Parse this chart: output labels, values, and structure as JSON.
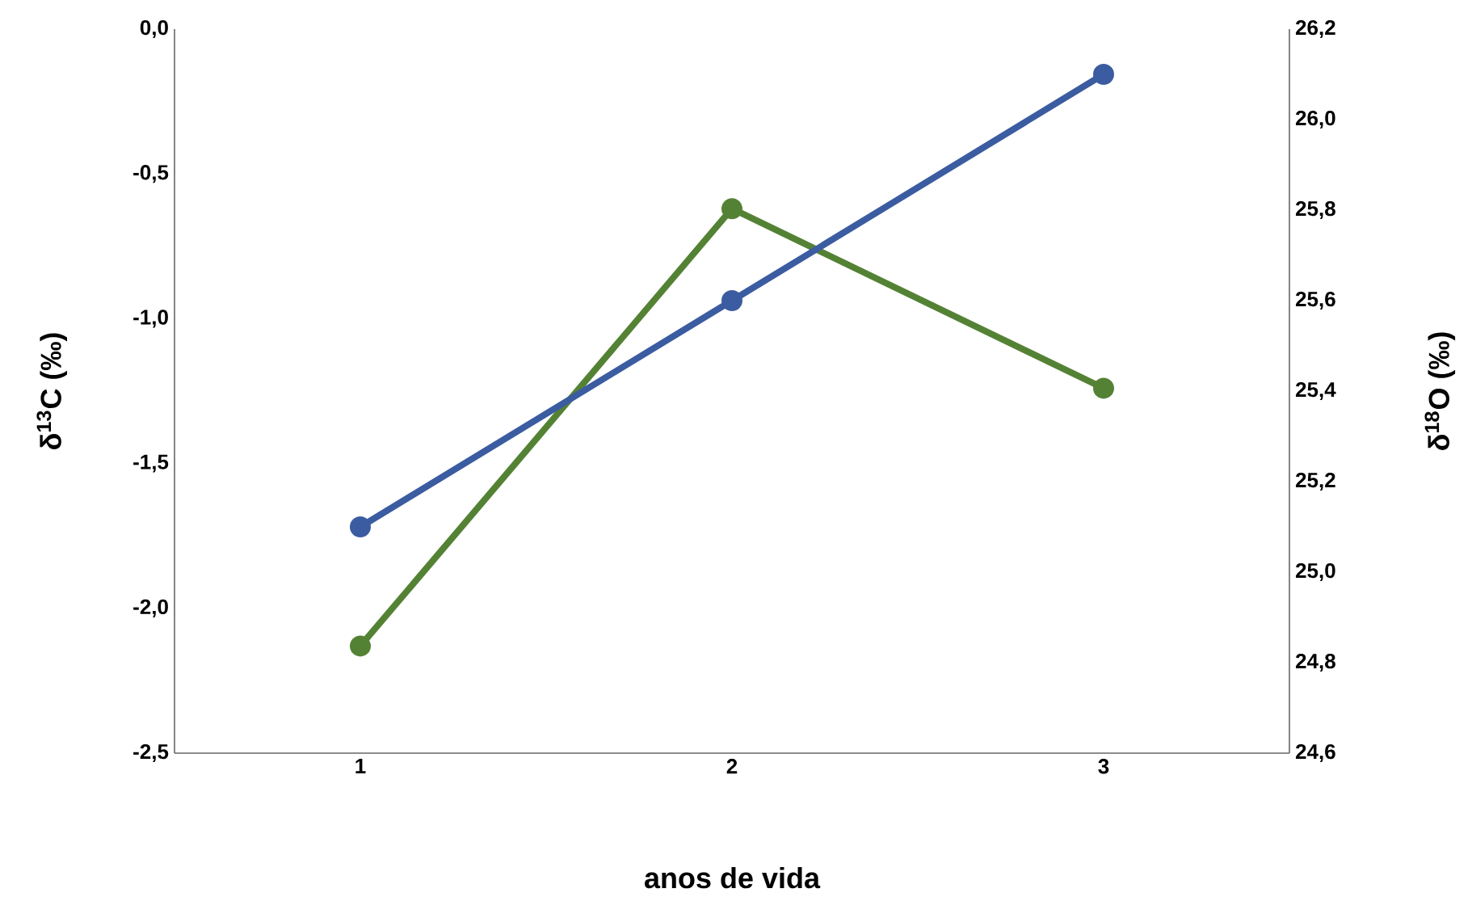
{
  "chart_data": {
    "type": "line",
    "xlabel": "anos de vida",
    "ylabel": "δ$^{13}$C (‰)",
    "y2label": "δ$^{18}$O (‰)",
    "categories": [
      "1",
      "2",
      "3"
    ],
    "series": [
      {
        "color": "#548235",
        "values": [
          -2.13,
          -0.62,
          -1.24
        ]
      },
      {
        "color": "#3b5ca0",
        "values": [
          25.1,
          25.6,
          26.1
        ],
        "axis": "y2"
      }
    ],
    "ylim": [
      -2.5,
      0
    ],
    "yticks": [
      {
        "value": -2.5,
        "label": "-2,5"
      },
      {
        "value": -2,
        "label": "-2,0"
      },
      {
        "value": -1.5,
        "label": "-1,5"
      },
      {
        "value": -1,
        "label": "-1,0"
      },
      {
        "value": -0.5,
        "label": "-0,5"
      },
      {
        "value": 0,
        "label": "0,0"
      }
    ],
    "y2lim": [
      24.6,
      26.2
    ],
    "y2ticks": [
      {
        "value": 24.6,
        "label": "24,6"
      },
      {
        "value": 24.8,
        "label": "24,8"
      },
      {
        "value": 25,
        "label": "25,0"
      },
      {
        "value": 25.2,
        "label": "25,2"
      },
      {
        "value": 25.4,
        "label": "25,4"
      },
      {
        "value": 25.6,
        "label": "25,6"
      },
      {
        "value": 25.8,
        "label": "25,8"
      },
      {
        "value": 26,
        "label": "26,0"
      },
      {
        "value": 26.2,
        "label": "26,2"
      }
    ],
    "marker": "circle",
    "line_style": "solid"
  }
}
